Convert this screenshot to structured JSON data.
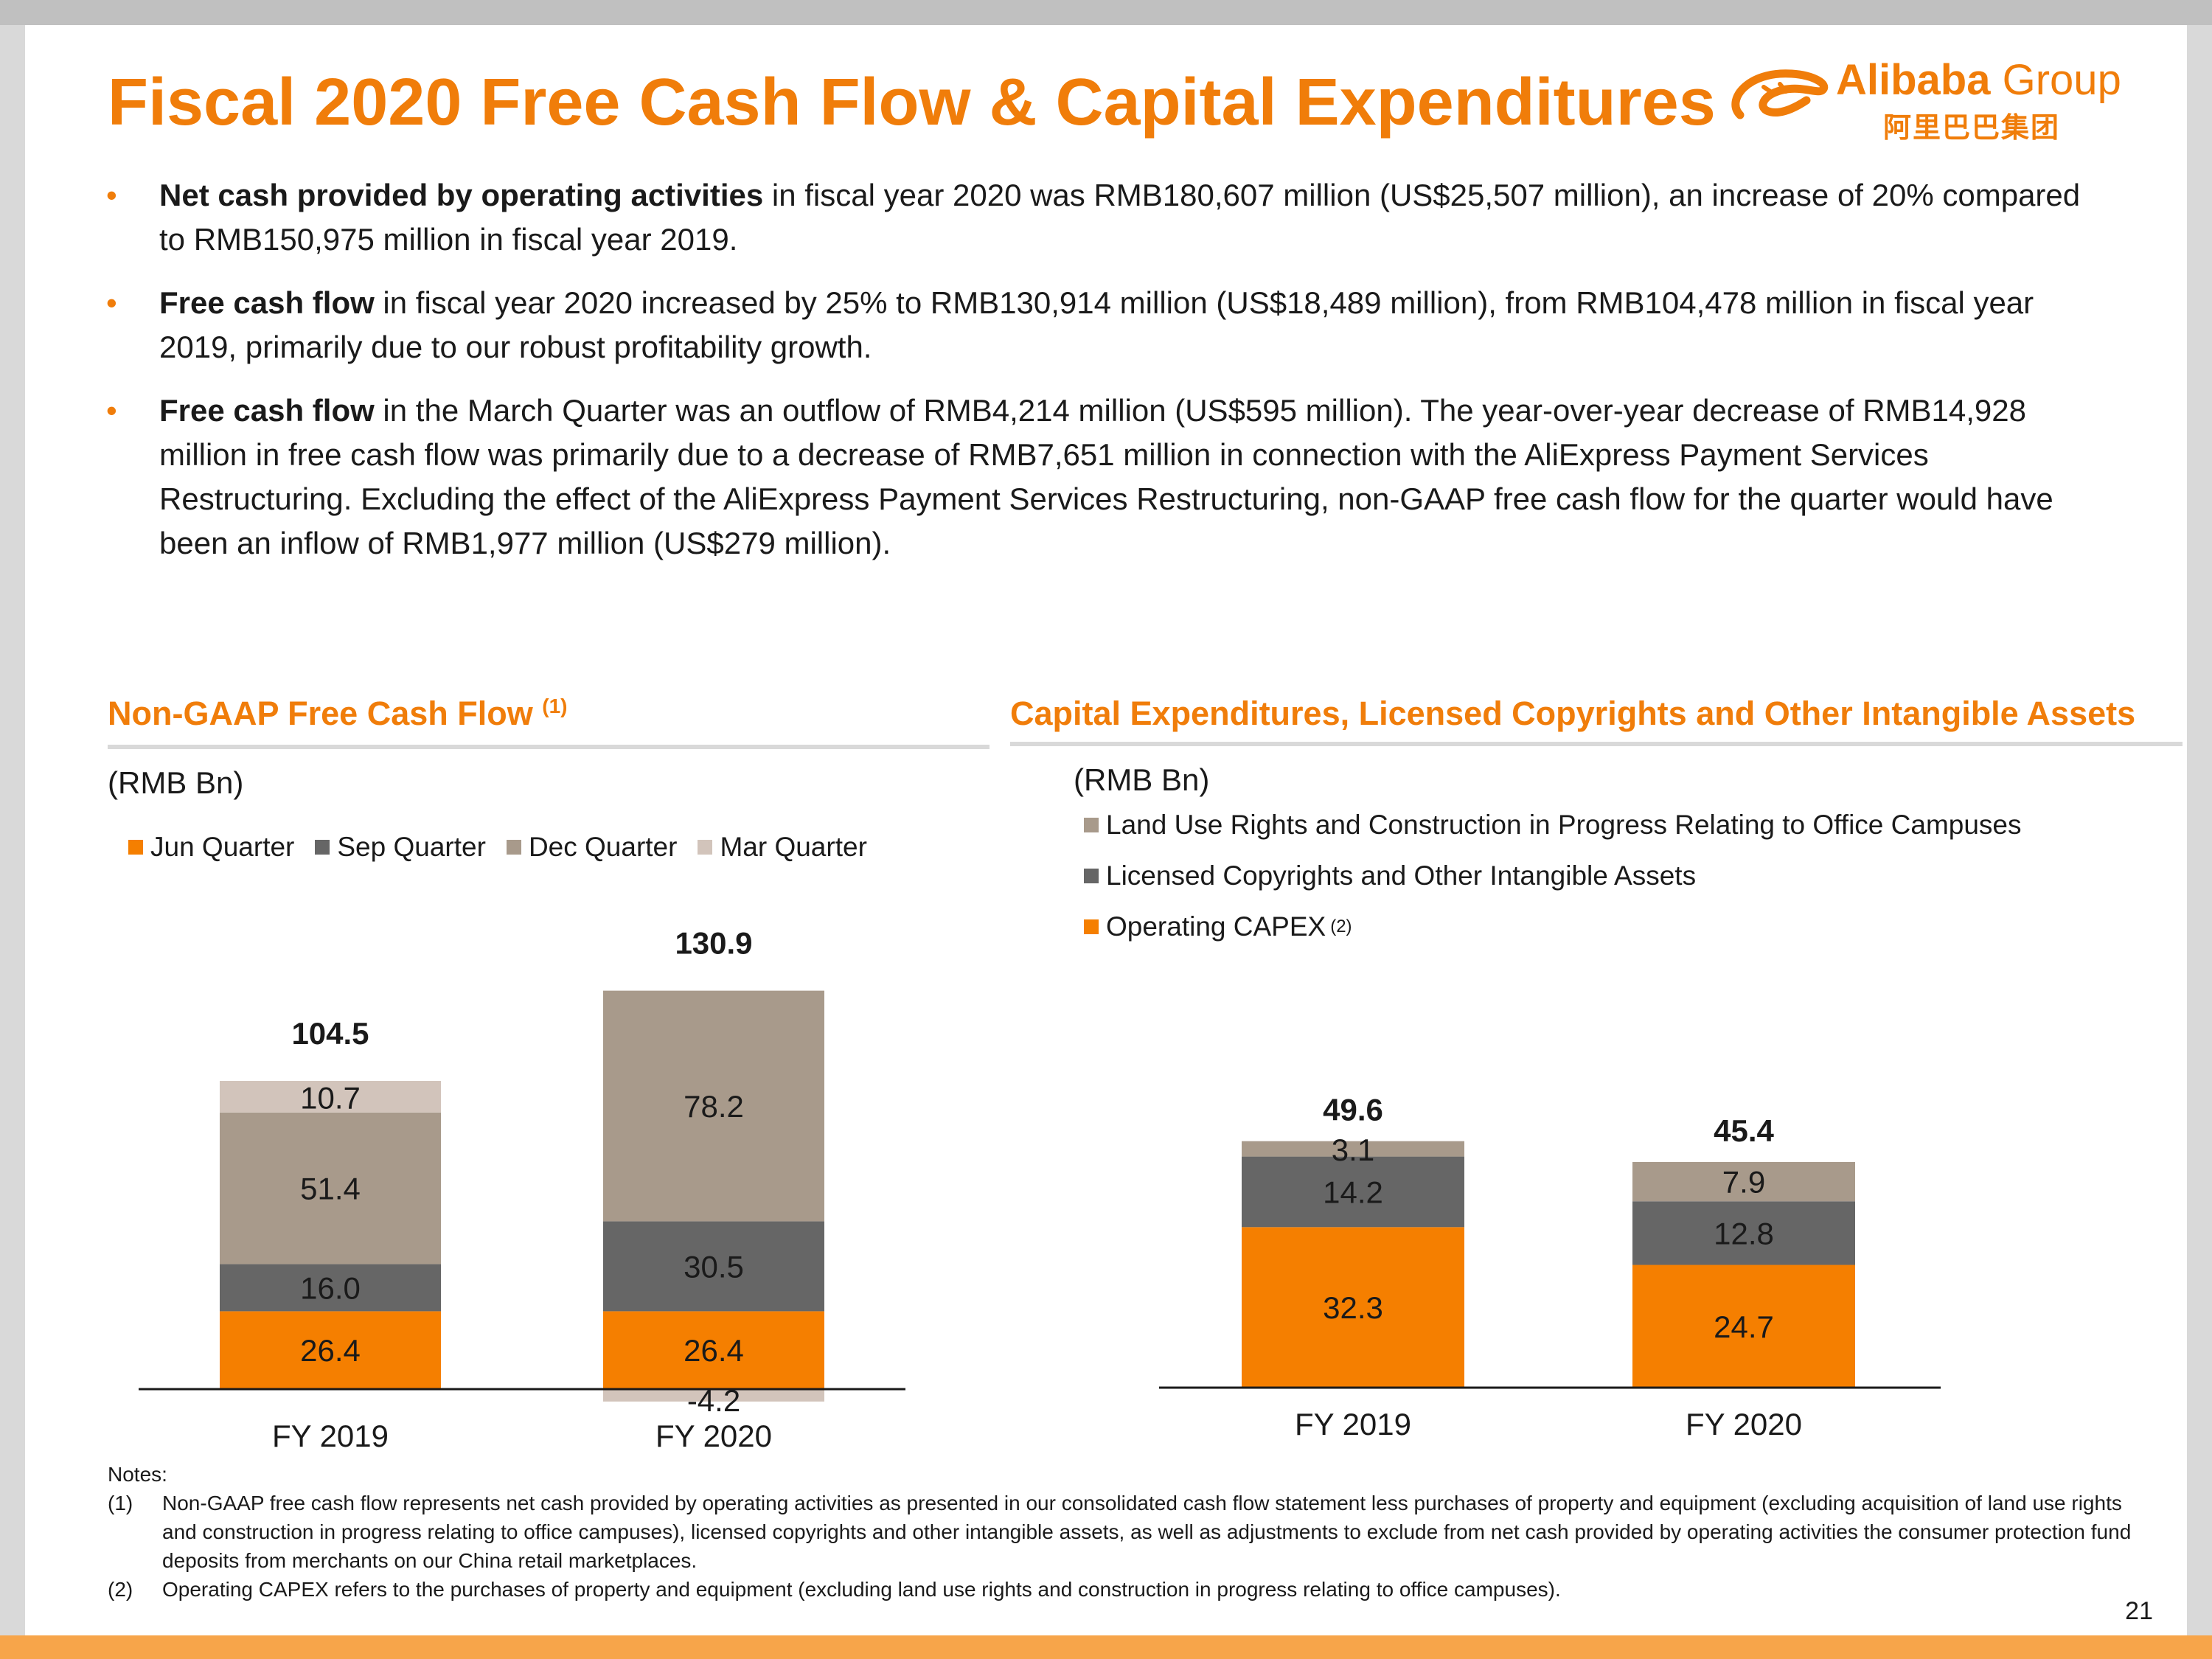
{
  "title": "Fiscal 2020 Free Cash Flow & Capital Expenditures",
  "logo": {
    "name": "Alibaba",
    "group": "Group",
    "chinese": "阿里巴巴集团"
  },
  "bullets": [
    {
      "bold": "Net cash provided by operating activities",
      "text": " in fiscal year 2020 was RMB180,607 million (US$25,507 million), an increase of 20% compared to RMB150,975 million in fiscal year 2019."
    },
    {
      "bold": "Free cash flow",
      "text": " in fiscal year 2020 increased by 25% to RMB130,914 million (US$18,489 million), from RMB104,478 million in fiscal year 2019, primarily due to our robust profitability growth."
    },
    {
      "bold": "Free cash flow",
      "text": " in the March Quarter was an outflow of RMB4,214 million (US$595 million). The year-over-year decrease of RMB14,928 million in free cash flow was primarily due to a decrease of RMB7,651 million in connection with the AliExpress Payment Services Restructuring. Excluding the effect of the AliExpress Payment Services Restructuring, non-GAAP free cash flow for the quarter would have been an inflow of RMB1,977 million (US$279 million)."
    }
  ],
  "left_section": {
    "title": "Non-GAAP Free Cash Flow",
    "title_note": "(1)",
    "unit": "(RMB Bn)",
    "legend": [
      "Jun Quarter",
      "Sep Quarter",
      "Dec Quarter",
      "Mar Quarter"
    ]
  },
  "right_section": {
    "title": "Capital Expenditures, Licensed Copyrights and Other Intangible Assets",
    "unit": "(RMB Bn)",
    "legend": [
      "Land Use Rights and Construction in Progress Relating to Office Campuses",
      "Licensed Copyrights and Other Intangible Assets",
      "Operating CAPEX"
    ],
    "legend_note": "(2)"
  },
  "chart_data": [
    {
      "type": "bar",
      "stacked": true,
      "title": "Non-GAAP Free Cash Flow (1)",
      "ylabel": "(RMB Bn)",
      "categories": [
        "FY 2019",
        "FY 2020"
      ],
      "series": [
        {
          "name": "Jun Quarter",
          "values": [
            26.4,
            26.4
          ],
          "labels": [
            "26.4",
            "26.4"
          ],
          "color": "#f57f00"
        },
        {
          "name": "Sep Quarter",
          "values": [
            16.0,
            30.5
          ],
          "labels": [
            "16.0",
            "30.5"
          ],
          "color": "#666666"
        },
        {
          "name": "Dec Quarter",
          "values": [
            51.4,
            78.2
          ],
          "labels": [
            "51.4",
            "78.2"
          ],
          "color": "#a89a8b"
        },
        {
          "name": "Mar Quarter",
          "values": [
            10.7,
            -4.2
          ],
          "labels": [
            "10.7",
            "-4.2"
          ],
          "color": "#d2c4bb"
        }
      ],
      "totals": [
        "104.5",
        "130.9"
      ],
      "legend_position": "top",
      "grid": false
    },
    {
      "type": "bar",
      "stacked": true,
      "title": "Capital Expenditures, Licensed Copyrights and Other Intangible Assets",
      "ylabel": "(RMB Bn)",
      "categories": [
        "FY 2019",
        "FY 2020"
      ],
      "series": [
        {
          "name": "Operating CAPEX",
          "values": [
            32.3,
            24.7
          ],
          "labels": [
            "32.3",
            "24.7"
          ],
          "color": "#f57f00"
        },
        {
          "name": "Licensed Copyrights and Other Intangible Assets",
          "values": [
            14.2,
            12.8
          ],
          "labels": [
            "14.2",
            "12.8"
          ],
          "color": "#666666"
        },
        {
          "name": "Land Use Rights and Construction in Progress Relating to Office Campuses",
          "values": [
            3.1,
            7.9
          ],
          "labels": [
            "3.1",
            "7.9"
          ],
          "color": "#a89a8b"
        }
      ],
      "totals": [
        "49.6",
        "45.4"
      ],
      "legend_position": "top-left",
      "grid": false
    }
  ],
  "notes": {
    "heading": "Notes:",
    "items": [
      {
        "num": "(1)",
        "text": "Non-GAAP free cash flow represents net cash provided by operating activities as presented in our consolidated cash flow statement less purchases of property and equipment (excluding acquisition of land use rights and construction in progress relating to office campuses), licensed copyrights and other intangible assets, as well as adjustments to exclude from net cash provided by operating activities the consumer protection fund deposits from merchants on our China retail marketplaces."
      },
      {
        "num": "(2)",
        "text": "Operating CAPEX refers to the purchases of property and equipment (excluding land use rights and construction in progress relating to office campuses)."
      }
    ]
  },
  "page_number": "21"
}
